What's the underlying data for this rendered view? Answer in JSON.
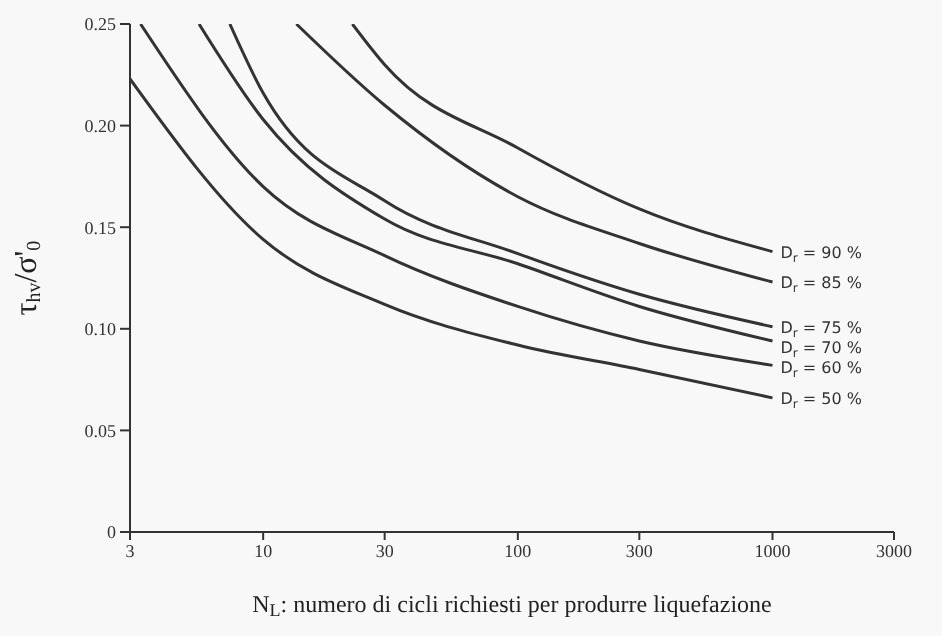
{
  "chart_data": {
    "type": "line",
    "xlabel": "N$_{L}$: numero di cicli richiesti per produrre liquefazione",
    "ylabel": "τ$_{hv}$/σ'$_{0}$",
    "log": "x",
    "xlim": [
      3,
      3000
    ],
    "xticks": [
      3,
      10,
      30,
      100,
      300,
      1000,
      3000
    ],
    "ylim": [
      0,
      0.25
    ],
    "yticks": [
      0,
      0.05,
      {
        "value": 0.1,
        "label": "0.10"
      },
      {
        "value": 0.15,
        "label": "0.15"
      },
      {
        "value": 0.2,
        "label": "0.20"
      },
      0.25
    ],
    "marker": "none",
    "line_style": "solid",
    "series": [
      {
        "name": "D$_{r}$ = 90 %",
        "color": "#333333",
        "x": [
          22.4,
          30,
          100,
          300,
          1000
        ],
        "values": [
          0.25,
          0.23,
          0.189,
          0.159,
          0.138
        ]
      },
      {
        "name": "D$_{r}$ = 85 %",
        "color": "#333333",
        "x": [
          13.5,
          30,
          100,
          300,
          1000
        ],
        "values": [
          0.25,
          0.21,
          0.165,
          0.142,
          0.123
        ]
      },
      {
        "name": "D$_{r}$ = 75 %",
        "color": "#333333",
        "x": [
          7.4,
          10,
          30,
          100,
          300,
          1000
        ],
        "values": [
          0.25,
          0.216,
          0.163,
          0.137,
          0.117,
          0.101
        ]
      },
      {
        "name": "D$_{r}$ = 70 %",
        "color": "#333333",
        "x": [
          5.6,
          10,
          30,
          100,
          300,
          1000
        ],
        "values": [
          0.25,
          0.203,
          0.154,
          0.132,
          0.111,
          0.094
        ]
      },
      {
        "name": "D$_{r}$ = 60 %",
        "color": "#333333",
        "x": [
          3.3,
          10,
          30,
          100,
          300,
          1000
        ],
        "values": [
          0.25,
          0.17,
          0.136,
          0.111,
          0.094,
          0.082
        ]
      },
      {
        "name": "D$_{r}$ = 50 %",
        "color": "#333333",
        "x": [
          3,
          10,
          30,
          100,
          300,
          1000
        ],
        "values": [
          0.223,
          0.144,
          0.112,
          0.092,
          0.08,
          0.066
        ]
      }
    ]
  }
}
